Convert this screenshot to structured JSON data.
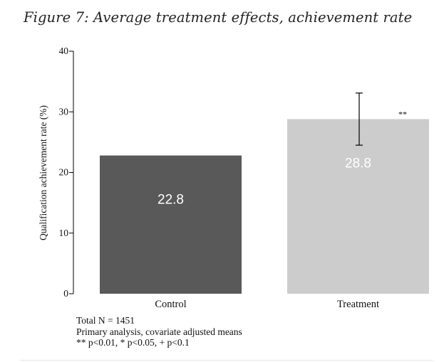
{
  "figure_title": "Figure 7: Average treatment effects, achievement rate",
  "notes": [
    "Total N = 1451",
    "Primary analysis, covariate adjusted means",
    "** p<0.01, * p<0.05, + p<0.1"
  ],
  "colors": {
    "control_bar": "#595959",
    "treatment_bar": "#cccccc",
    "axis": "#000000",
    "bar_label": "#ffffff"
  },
  "chart_data": {
    "type": "bar",
    "categories": [
      "Control",
      "Treatment"
    ],
    "values": [
      22.8,
      28.8
    ],
    "value_labels": [
      "22.8",
      "28.8"
    ],
    "error_bars": [
      null,
      {
        "low": 24.5,
        "high": 33.1
      }
    ],
    "significance": [
      null,
      "**"
    ],
    "ylabel": "Qualification achievement rate (%)",
    "xlabel": "",
    "ylim": [
      0,
      40
    ],
    "yticks": [
      0,
      10,
      20,
      30,
      40
    ],
    "grid": false,
    "legend": "none"
  }
}
